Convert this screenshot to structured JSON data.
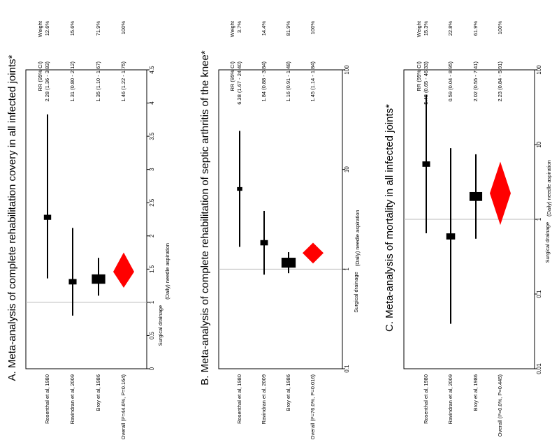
{
  "chart_data": [
    {
      "type": "forest",
      "title": "A. Meta-analysis of complete rehabilitation covery in all infected joints*",
      "scale": "linear",
      "axis_range": [
        0,
        4.5
      ],
      "ticks": [
        "0",
        "0.5",
        "1",
        "1.5",
        "2",
        "2.5",
        "3",
        "3.5",
        "4",
        "4.5"
      ],
      "tick_values": [
        0,
        0.5,
        1,
        1.5,
        2,
        2.5,
        3,
        3.5,
        4,
        4.5
      ],
      "reference_line": 1,
      "left_label": "Surgical drainage",
      "right_label": "(Daily) needle aspiration",
      "col_rr_header": "RR (95% CI)",
      "col_weight_header": "Weight",
      "studies": [
        {
          "name": "Rosenthal et al, 1980",
          "rr": 2.28,
          "lo": 1.36,
          "hi": 3.83,
          "rr_text": "2.28 (1.36 - 3.83)",
          "weight_text": "12.6%",
          "weight": 12.6
        },
        {
          "name": "Ravindran et al, 2009",
          "rr": 1.31,
          "lo": 0.8,
          "hi": 2.12,
          "rr_text": "1.31 (0.80 - 2.12)",
          "weight_text": "15.6%",
          "weight": 15.6
        },
        {
          "name": "Broy et al, 1986",
          "rr": 1.35,
          "lo": 1.1,
          "hi": 1.67,
          "rr_text": "1.35 (1.10 - 1.67)",
          "weight_text": "71.9%",
          "weight": 71.9
        }
      ],
      "overall": {
        "name": "Overall (I²=44.6%, P=0.164)",
        "rr": 1.46,
        "lo": 1.22,
        "hi": 1.75,
        "rr_text": "1.46 (1.22 - 1.75)",
        "weight_text": "100%"
      }
    },
    {
      "type": "forest",
      "title": "B. Meta-analysis of complete rehabilitation of septic arthritis of the knee*",
      "scale": "log",
      "axis_range": [
        0.1,
        100
      ],
      "ticks": [
        "0.1",
        "1",
        "10",
        "100"
      ],
      "tick_values": [
        0.1,
        1,
        10,
        100
      ],
      "reference_line": 1,
      "left_label": "Surgical drainage",
      "right_label": "(Daily) needle aspiration",
      "col_rr_header": "RR (95% CI)",
      "col_weight_header": "Weight",
      "studies": [
        {
          "name": "Rosenthal et al, 1980",
          "rr": 6.38,
          "lo": 1.67,
          "hi": 24.4,
          "rr_text": "6.38 (1.67 - 24.40)",
          "weight_text": "3.7%",
          "weight": 3.7
        },
        {
          "name": "Ravindran et al, 2009",
          "rr": 1.84,
          "lo": 0.88,
          "hi": 3.84,
          "rr_text": "1.84 (0.88 - 3.84)",
          "weight_text": "14.4%",
          "weight": 14.4
        },
        {
          "name": "Broy et al, 1986",
          "rr": 1.16,
          "lo": 0.91,
          "hi": 1.48,
          "rr_text": "1.16 (0.91 - 1.48)",
          "weight_text": "81.9%",
          "weight": 81.9
        }
      ],
      "overall": {
        "name": "Overall (I²=76.0%, P=0.016)",
        "rr": 1.45,
        "lo": 1.14,
        "hi": 1.84,
        "rr_text": "1.45 (1.14 - 1.84)",
        "weight_text": "100%"
      }
    },
    {
      "type": "forest",
      "title": "C. Meta-analysis of mortality in all infected joints*",
      "scale": "log",
      "axis_range": [
        0.01,
        100
      ],
      "ticks": [
        "0.01",
        "0.1",
        "1",
        "10",
        "100"
      ],
      "tick_values": [
        0.01,
        0.1,
        1,
        10,
        100
      ],
      "reference_line": 1,
      "left_label": "Surgical drainage",
      "right_label": "(Daily) needle aspiration",
      "col_rr_header": "RR (95% CI)",
      "col_weight_header": "Weight",
      "studies": [
        {
          "name": "Rosenthal et al, 1980",
          "rr": 5.48,
          "lo": 0.65,
          "hi": 46.33,
          "rr_text": "5.48 (0.65 - 46.33)",
          "weight_text": "15.3%",
          "weight": 15.3
        },
        {
          "name": "Ravindran et al, 2009",
          "rr": 0.59,
          "lo": 0.04,
          "hi": 8.95,
          "rr_text": "0.59 (0.04 - 8.95)",
          "weight_text": "22.8%",
          "weight": 22.8
        },
        {
          "name": "Broy et al, 1986",
          "rr": 2.02,
          "lo": 0.55,
          "hi": 7.41,
          "rr_text": "2.02 (0.55 - 7.41)",
          "weight_text": "61.9%",
          "weight": 61.9
        }
      ],
      "overall": {
        "name": "Overall (I²=0.0%, P=0.445)",
        "rr": 2.23,
        "lo": 0.84,
        "hi": 5.91,
        "rr_text": "2.23 (0.84 - 5.91)",
        "weight_text": "100%"
      }
    }
  ],
  "colors": {
    "diamond": "#ff0000",
    "marks": "#000000",
    "refline": "#bbbbbb"
  }
}
